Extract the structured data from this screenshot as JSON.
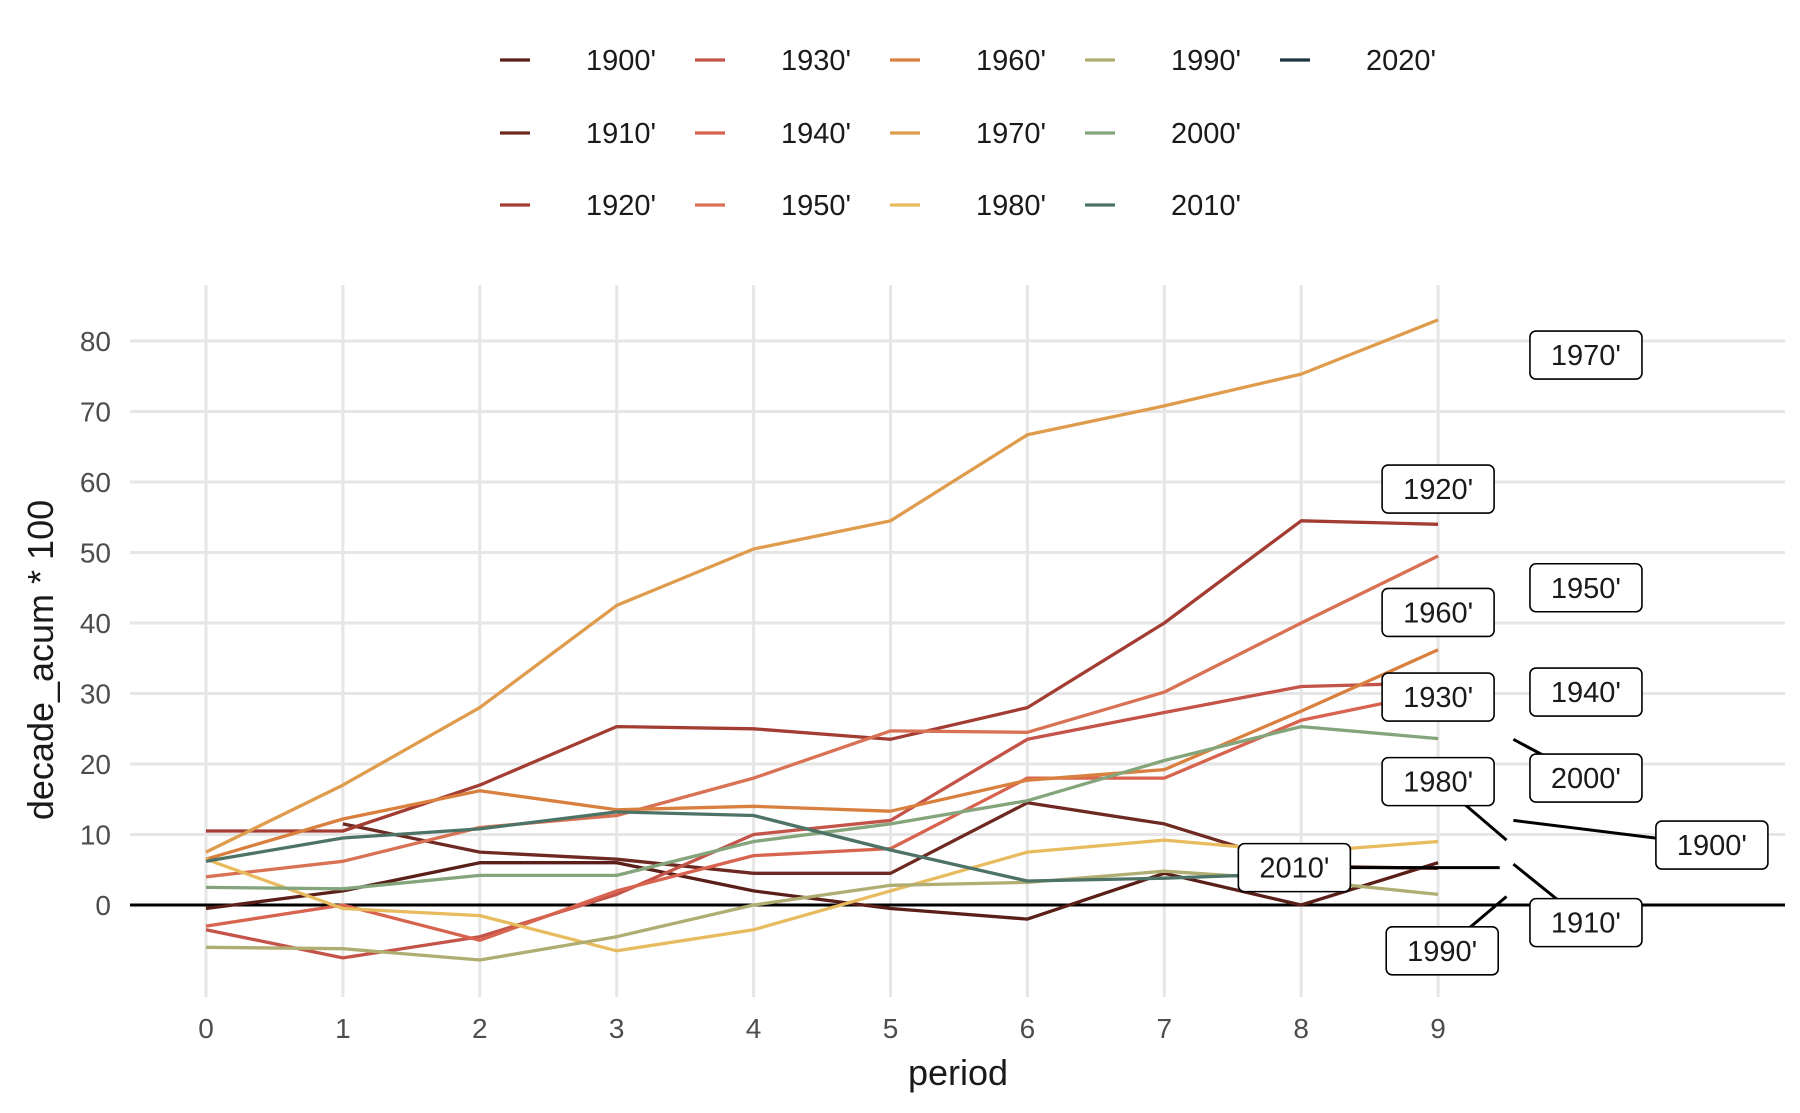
{
  "chart_data": {
    "type": "line",
    "xlabel": "period",
    "ylabel": "decade_acum * 100",
    "x": [
      0,
      1,
      2,
      3,
      4,
      5,
      6,
      7,
      8,
      9
    ],
    "xlim": [
      -0.55,
      11.6
    ],
    "ylim": [
      -13,
      88
    ],
    "yticks": [
      0,
      10,
      20,
      30,
      40,
      50,
      60,
      70,
      80
    ],
    "grid": true,
    "zero_line": true,
    "legend_position": "top",
    "series": [
      {
        "name": "1900'",
        "color": "#5a1f18",
        "values": [
          -0.5,
          2,
          6,
          6,
          2,
          -0.5,
          -2,
          4.5,
          0,
          6
        ]
      },
      {
        "name": "1910'",
        "color": "#6e2a22",
        "values": [
          null,
          11.5,
          7.5,
          6.5,
          4.5,
          4.5,
          14.5,
          11.5,
          5.5,
          5.2
        ]
      },
      {
        "name": "1920'",
        "color": "#a33d33",
        "values": [
          10.5,
          10.5,
          17,
          25.3,
          25,
          23.5,
          28,
          40,
          54.5,
          54
        ]
      },
      {
        "name": "1930'",
        "color": "#c4544a",
        "values": [
          -3.5,
          -7.5,
          -4.5,
          1.5,
          10,
          12,
          23.5,
          27.3,
          31,
          31.5
        ]
      },
      {
        "name": "1940'",
        "color": "#d8644f",
        "values": [
          -3,
          0,
          -5,
          2,
          7,
          8,
          18,
          18,
          26.2,
          30.2
        ]
      },
      {
        "name": "1950'",
        "color": "#d97254",
        "values": [
          4,
          6.2,
          11,
          12.7,
          18,
          24.7,
          24.5,
          30.2,
          40,
          49.5
        ]
      },
      {
        "name": "1960'",
        "color": "#d9803f",
        "values": [
          6.5,
          12.2,
          16.2,
          13.5,
          14,
          13.3,
          17.7,
          19.2,
          27.5,
          36.2
        ]
      },
      {
        "name": "1970'",
        "color": "#df9c4c",
        "values": [
          7.5,
          17,
          28,
          42.5,
          50.5,
          54.5,
          66.7,
          70.8,
          75.3,
          83
        ]
      },
      {
        "name": "1980'",
        "color": "#e8bb5e",
        "values": [
          6.5,
          -0.5,
          -1.5,
          -6.5,
          -3.5,
          2,
          7.5,
          9.2,
          7.5,
          9
        ]
      },
      {
        "name": "1990'",
        "color": "#b0ad72",
        "values": [
          -6,
          -6.2,
          -7.8,
          -4.5,
          0,
          2.8,
          3.2,
          4.8,
          3.5,
          1.5
        ]
      },
      {
        "name": "2000'",
        "color": "#84a57c",
        "values": [
          2.5,
          2.3,
          4.2,
          4.2,
          9,
          11.5,
          14.8,
          20.5,
          25.3,
          23.6
        ]
      },
      {
        "name": "2010'",
        "color": "#4d7367",
        "values": [
          6.2,
          9.5,
          10.8,
          13.2,
          12.7,
          7.8,
          3.4,
          3.8,
          4.5,
          null
        ]
      },
      {
        "name": "2020'",
        "color": "#1f3640",
        "values": [
          null,
          null,
          null,
          null,
          null,
          null,
          null,
          null,
          null,
          null
        ]
      }
    ],
    "callouts": [
      {
        "label": "1970'",
        "x": 10.08,
        "y": 78,
        "leader_from": null
      },
      {
        "label": "1920'",
        "x": 9.0,
        "y": 59,
        "leader_from": null
      },
      {
        "label": "1950'",
        "x": 10.08,
        "y": 45,
        "leader_from": null
      },
      {
        "label": "1960'",
        "x": 9.0,
        "y": 41.5,
        "leader_from": null
      },
      {
        "label": "1930'",
        "x": 9.0,
        "y": 29.5,
        "leader_from": null
      },
      {
        "label": "1940'",
        "x": 10.08,
        "y": 30.2,
        "leader_from": null
      },
      {
        "label": "2000'",
        "x": 10.08,
        "y": 18,
        "leader_from": [
          9.55,
          23.5
        ]
      },
      {
        "label": "1980'",
        "x": 9.0,
        "y": 17.5,
        "leader_from": [
          9.5,
          9.2
        ]
      },
      {
        "label": "1900'",
        "x": 11.0,
        "y": 8.5,
        "leader_from": [
          9.55,
          12
        ]
      },
      {
        "label": "2010'",
        "x": 7.95,
        "y": 5.3,
        "leader_from": [
          9.45,
          5.3
        ]
      },
      {
        "label": "1910'",
        "x": 10.08,
        "y": -2.5,
        "leader_from": [
          9.55,
          5.8
        ]
      },
      {
        "label": "1990'",
        "x": 9.03,
        "y": -6.5,
        "leader_from": [
          9.5,
          1.2
        ]
      }
    ]
  }
}
